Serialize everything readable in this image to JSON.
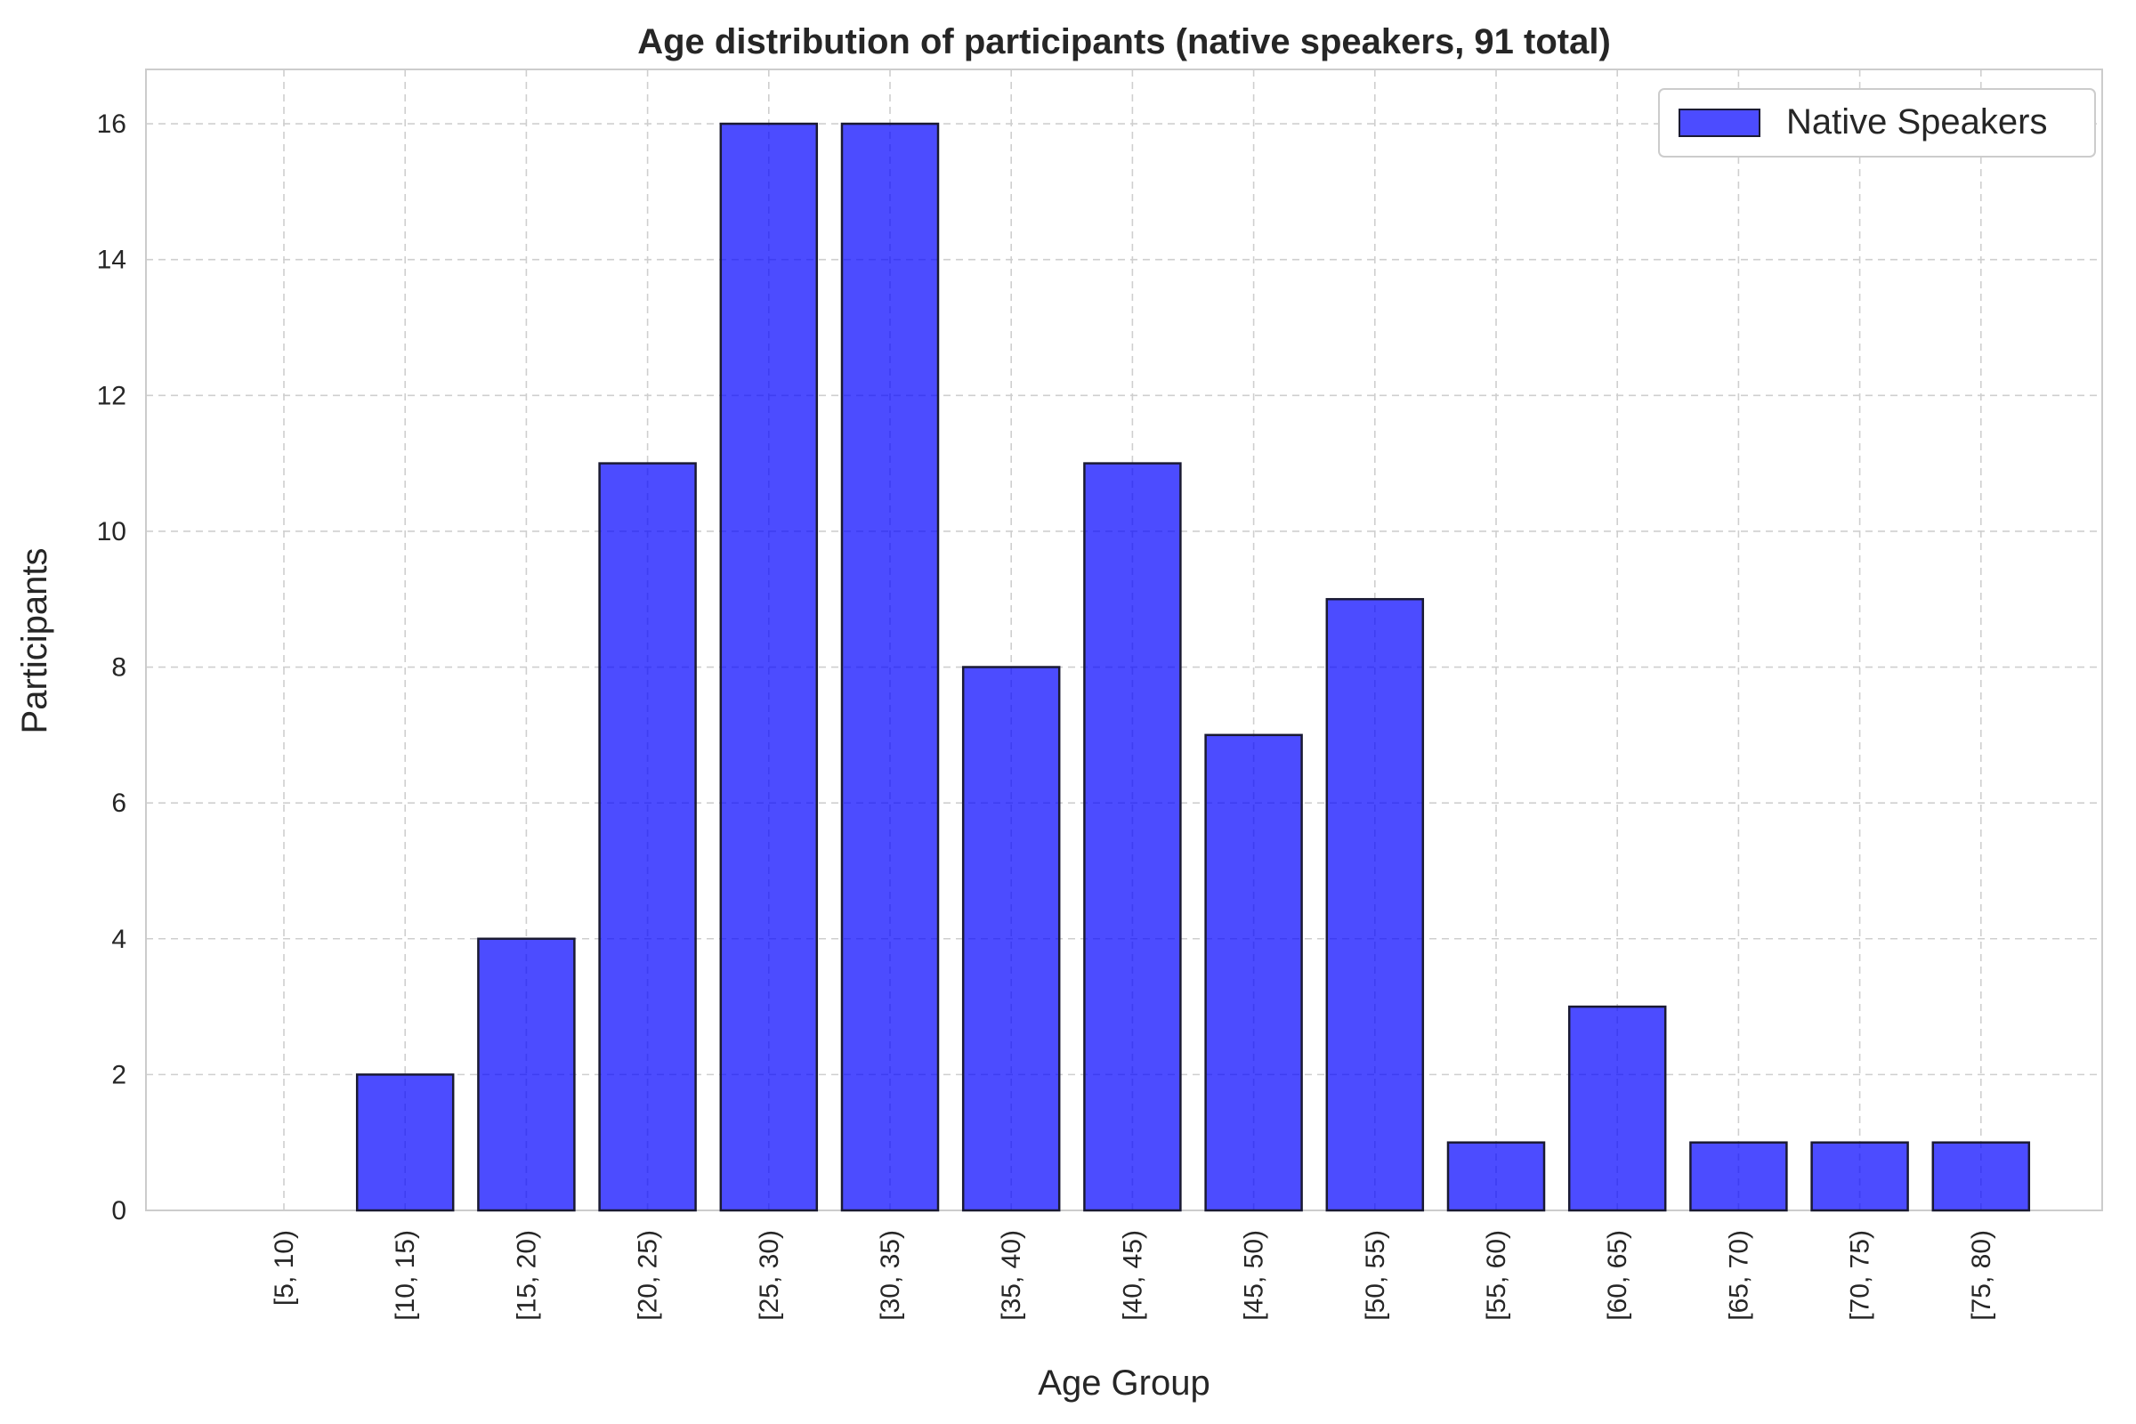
{
  "chart_data": {
    "type": "bar",
    "title": "Age distribution of participants (native speakers, 91 total)",
    "xlabel": "Age Group",
    "ylabel": "Participants",
    "categories": [
      "[5, 10)",
      "[10, 15)",
      "[15, 20)",
      "[20, 25)",
      "[25, 30)",
      "[30, 35)",
      "[35, 40)",
      "[40, 45)",
      "[45, 50)",
      "[50, 55)",
      "[55, 60)",
      "[60, 65)",
      "[65, 70)",
      "[70, 75)",
      "[75, 80)"
    ],
    "series": [
      {
        "name": "Native Speakers",
        "values": [
          0,
          2,
          4,
          11,
          16,
          16,
          8,
          11,
          7,
          9,
          1,
          3,
          1,
          1,
          1
        ],
        "color": "#0000ff",
        "edge_color": "#1a1a33"
      }
    ],
    "ylim": [
      0,
      16.8
    ],
    "yticks": [
      0,
      2,
      4,
      6,
      8,
      10,
      12,
      14,
      16
    ],
    "grid": true,
    "legend_position": "top-right"
  }
}
